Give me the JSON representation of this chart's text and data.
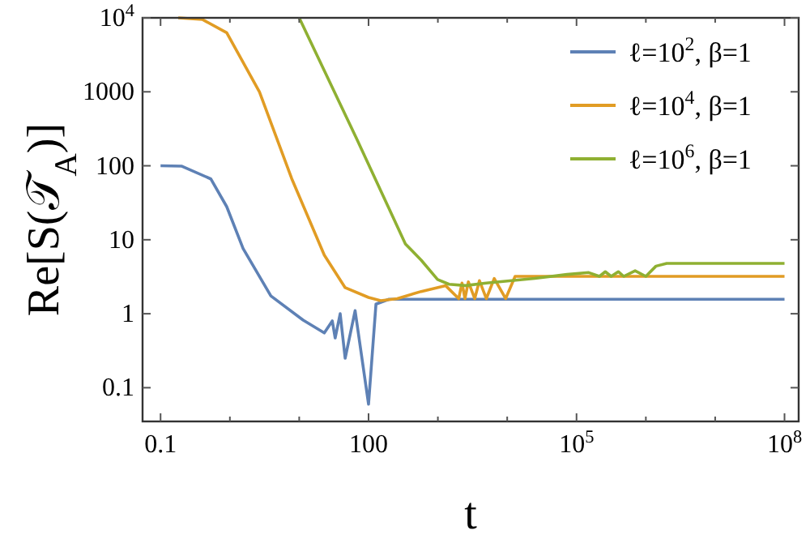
{
  "chart_data": {
    "type": "line",
    "xlabel": "t",
    "ylabel": "Re[S(𝒯$_{A}$)]",
    "log": "xy",
    "grid": false,
    "legend": "top right",
    "marker": "none",
    "line_style": "solid",
    "xlim": [
      0.055,
      160000000
    ],
    "ylim": [
      0.035,
      10000
    ],
    "xticks": [
      0.1,
      {
        "value": 1,
        "label": null
      },
      {
        "value": 10,
        "label": null
      },
      100,
      {
        "value": 1000,
        "label": null
      },
      {
        "value": 10000,
        "label": null
      },
      {
        "value": 100000,
        "label": "10$^{5}$"
      },
      {
        "value": 1000000,
        "label": null
      },
      {
        "value": 10000000,
        "label": null
      },
      {
        "value": 100000000,
        "label": "10$^{8}$"
      }
    ],
    "yticks": [
      0.1,
      1,
      10,
      100,
      1000,
      {
        "value": 10000,
        "label": "10$^{4}$"
      }
    ],
    "series": [
      {
        "name": "ℓ=10$^{2}$, β=1",
        "color": "#5e81b5",
        "x": [
          0.1,
          0.2,
          0.53,
          0.9,
          1.55,
          3.9,
          11.4,
          23,
          30,
          33,
          39,
          46,
          64,
          100,
          128,
          197,
          100000000
        ],
        "values": [
          100,
          99,
          66.5,
          28,
          7.6,
          1.74,
          0.82,
          0.55,
          0.8,
          0.47,
          1.0,
          0.25,
          1.1,
          0.06,
          1.35,
          1.57,
          1.57
        ]
      },
      {
        "name": "ℓ=10$^{4}$, β=1",
        "color": "#e19c24",
        "x": [
          0.18,
          0.4,
          0.9,
          2.67,
          7.8,
          23,
          46,
          100,
          150,
          260,
          575,
          1290,
          2000,
          2230,
          2460,
          2750,
          3400,
          3980,
          5000,
          6500,
          9500,
          13000,
          100000000
        ],
        "values": [
          10000,
          9500,
          6300,
          1000,
          67,
          6.2,
          2.25,
          1.66,
          1.5,
          1.6,
          2.0,
          2.4,
          1.6,
          2.6,
          1.6,
          2.7,
          1.6,
          2.8,
          1.6,
          3.0,
          1.6,
          3.2,
          3.2
        ]
      },
      {
        "name": "ℓ=10$^{6}$, β=1",
        "color": "#8fb032",
        "x": [
          10,
          67,
          340,
          575,
          990,
          1450,
          2500,
          5000,
          25000,
          73000,
          150000,
          214000,
          260000,
          316000,
          400000,
          480000,
          700000,
          1000000,
          1400000,
          2000000,
          100000000
        ],
        "values": [
          10000,
          235,
          8.8,
          5.3,
          2.9,
          2.5,
          2.4,
          2.6,
          3.0,
          3.4,
          3.6,
          3.2,
          3.7,
          3.2,
          3.7,
          3.2,
          3.8,
          3.2,
          4.4,
          4.8,
          4.8
        ]
      }
    ]
  }
}
